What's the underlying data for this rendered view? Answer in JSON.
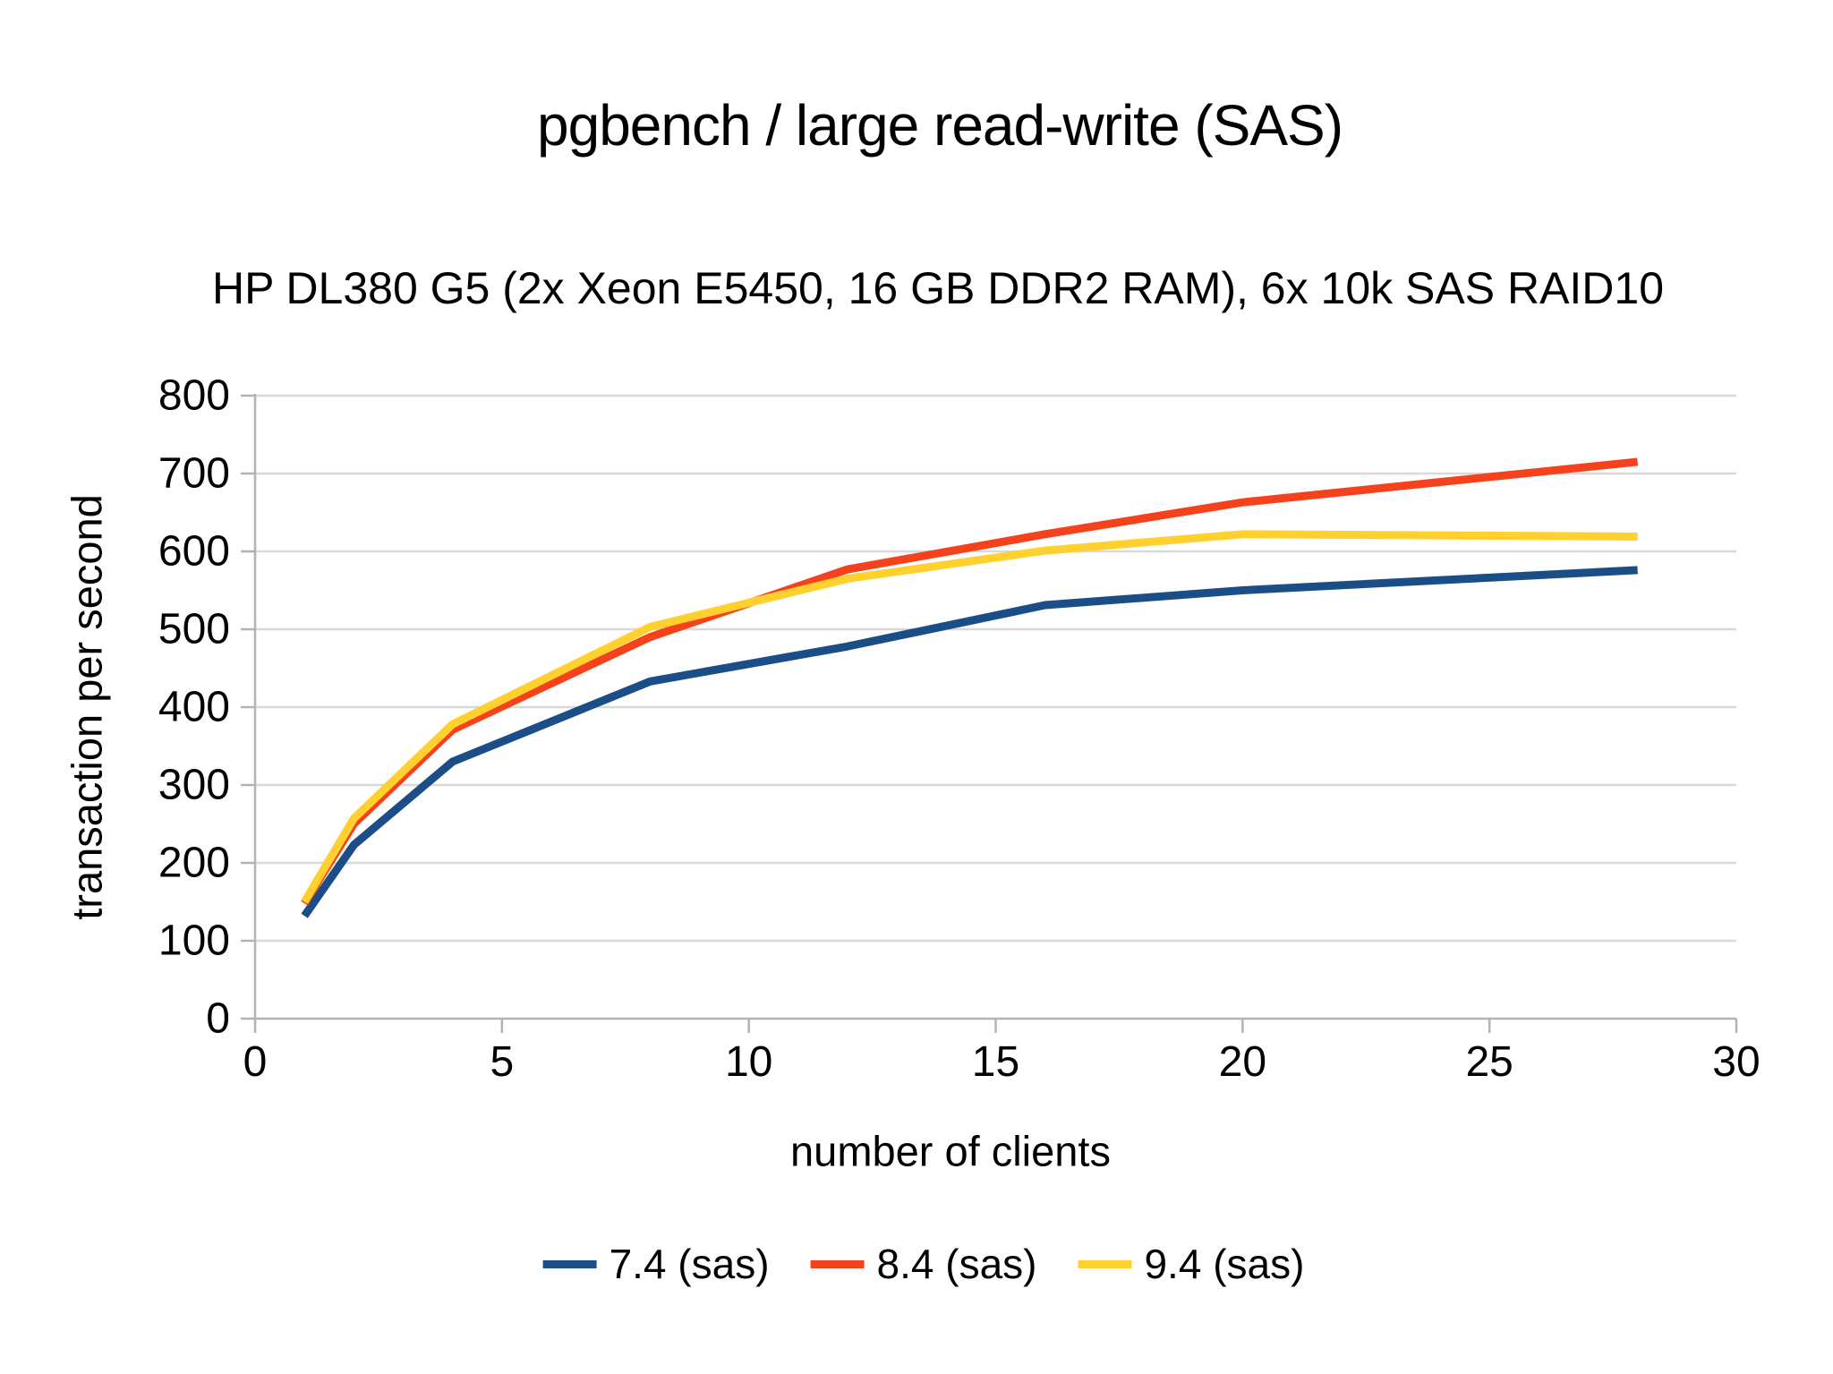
{
  "chart_data": {
    "type": "line",
    "title": "pgbench / large read-write (SAS)",
    "subtitle": "HP DL380 G5 (2x Xeon E5450, 16 GB DDR2 RAM), 6x 10k SAS RAID10",
    "xlabel": "number of clients",
    "ylabel": "transaction per second",
    "xlim": [
      0,
      30
    ],
    "ylim": [
      0,
      800
    ],
    "x_ticks": [
      0,
      5,
      10,
      15,
      20,
      25,
      30
    ],
    "y_ticks": [
      0,
      100,
      200,
      300,
      400,
      500,
      600,
      700,
      800
    ],
    "grid": "horizontal-only",
    "legend_position": "bottom-center",
    "x": [
      1,
      2,
      4,
      8,
      12,
      16,
      20,
      28
    ],
    "series": [
      {
        "name": "7.4 (sas)",
        "color": "#1B4E86",
        "values": [
          132,
          223,
          330,
          433,
          478,
          531,
          550,
          576
        ]
      },
      {
        "name": "8.4 (sas)",
        "color": "#F5421D",
        "values": [
          148,
          250,
          371,
          490,
          577,
          622,
          663,
          715
        ]
      },
      {
        "name": "9.4 (sas)",
        "color": "#FFD02E",
        "values": [
          150,
          257,
          378,
          503,
          565,
          601,
          622,
          619
        ]
      }
    ]
  },
  "colors": {
    "background": "#FFFFFF",
    "gridline": "#D9D9D9",
    "axis": "#B3B3B3",
    "text": "#000000"
  }
}
